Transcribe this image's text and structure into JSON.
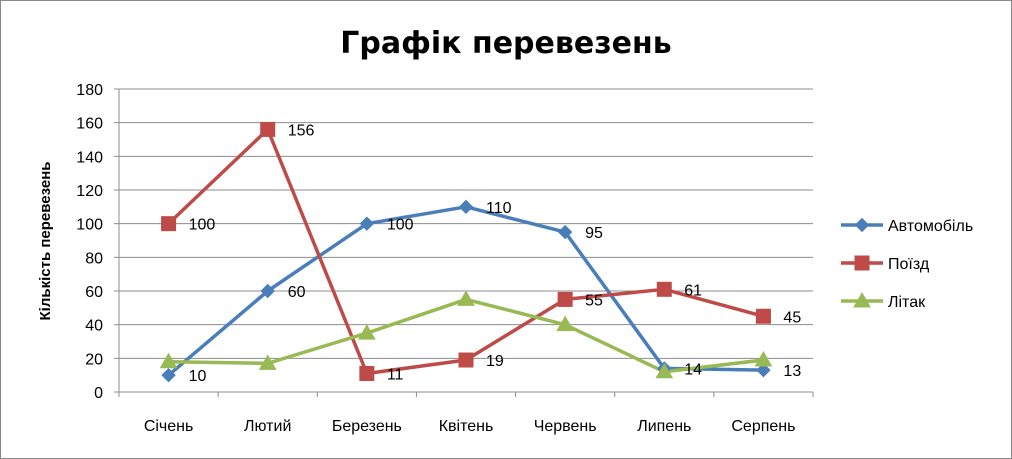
{
  "chart_data": {
    "type": "line",
    "title": "Графік перевезень",
    "xlabel": "",
    "ylabel": "Кількість перевезень",
    "ylim": [
      0,
      180
    ],
    "yticks": [
      0,
      20,
      40,
      60,
      80,
      100,
      120,
      140,
      160,
      180
    ],
    "grid": true,
    "legend_position": "right",
    "categories": [
      "Січень",
      "Лютий",
      "Березень",
      "Квітень",
      "Червень",
      "Липень",
      "Серпень"
    ],
    "series": [
      {
        "name": "Автомобіль",
        "color": "#4A7EBB",
        "marker": "diamond",
        "values": [
          10,
          60,
          100,
          110,
          95,
          14,
          13
        ],
        "labels": [
          "10",
          "60",
          "100",
          "110",
          "95",
          "14",
          "13"
        ]
      },
      {
        "name": "Поїзд",
        "color": "#BE4B48",
        "marker": "square",
        "values": [
          100,
          156,
          11,
          19,
          55,
          61,
          45
        ],
        "labels": [
          "100",
          "156",
          "11",
          "19",
          "55",
          "61",
          "45"
        ]
      },
      {
        "name": "Літак",
        "color": "#98B954",
        "marker": "triangle",
        "values": [
          18,
          17,
          35,
          55,
          40,
          12,
          19
        ],
        "labels": []
      }
    ]
  }
}
